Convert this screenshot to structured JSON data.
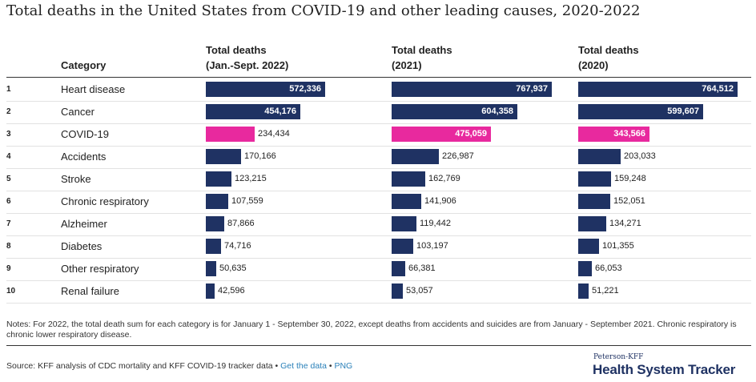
{
  "title": "Total deaths in the United States from COVID-19 and other leading causes, 2020-2022",
  "headers": {
    "category": "Category",
    "col1_line1": "Total deaths",
    "col1_line2": "(Jan.-Sept. 2022)",
    "col2_line1": "Total deaths",
    "col2_line2": "(2021)",
    "col3_line1": "Total deaths",
    "col3_line2": "(2020)"
  },
  "colors": {
    "bar": "#1f3263",
    "highlight": "#e8299e"
  },
  "chart_data": {
    "type": "bar",
    "orientation": "horizontal",
    "ranks": [
      "1",
      "2",
      "3",
      "4",
      "5",
      "6",
      "7",
      "8",
      "9",
      "10"
    ],
    "categories": [
      "Heart disease",
      "Cancer",
      "COVID-19",
      "Accidents",
      "Stroke",
      "Chronic respiratory",
      "Alzheimer",
      "Diabetes",
      "Other respiratory",
      "Renal failure"
    ],
    "highlight_category": "COVID-19",
    "series": [
      {
        "name": "Total deaths (Jan.-Sept. 2022)",
        "values": [
          572336,
          454176,
          234434,
          170166,
          123215,
          107559,
          87866,
          74716,
          50635,
          42596
        ],
        "labels": [
          "572,336",
          "454,176",
          "234,434",
          "170,166",
          "123,215",
          "107,559",
          "87,866",
          "74,716",
          "50,635",
          "42,596"
        ]
      },
      {
        "name": "Total deaths (2021)",
        "values": [
          767937,
          604358,
          475059,
          226987,
          162769,
          141906,
          119442,
          103197,
          66381,
          53057
        ],
        "labels": [
          "767,937",
          "604,358",
          "475,059",
          "226,987",
          "162,769",
          "141,906",
          "119,442",
          "103,197",
          "66,381",
          "53,057"
        ]
      },
      {
        "name": "Total deaths (2020)",
        "values": [
          764512,
          599607,
          343566,
          203033,
          159248,
          152051,
          134271,
          101355,
          66053,
          51221
        ],
        "labels": [
          "764,512",
          "599,607",
          "343,566",
          "203,033",
          "159,248",
          "152,051",
          "134,271",
          "101,355",
          "66,053",
          "51,221"
        ]
      }
    ]
  },
  "notes": "Notes: For 2022, the total death sum for each category is for January 1 - September 30, 2022, except deaths from accidents and suicides are from January - September 2021. Chronic respiratory is chronic lower respiratory disease.",
  "source": {
    "text": "Source: KFF analysis of CDC mortality and KFF COVID-19 tracker data •",
    "link1": "Get the data",
    "sep": "•",
    "link2": "PNG"
  },
  "brand": {
    "small": "Peterson-KFF",
    "big": "Health System Tracker"
  }
}
